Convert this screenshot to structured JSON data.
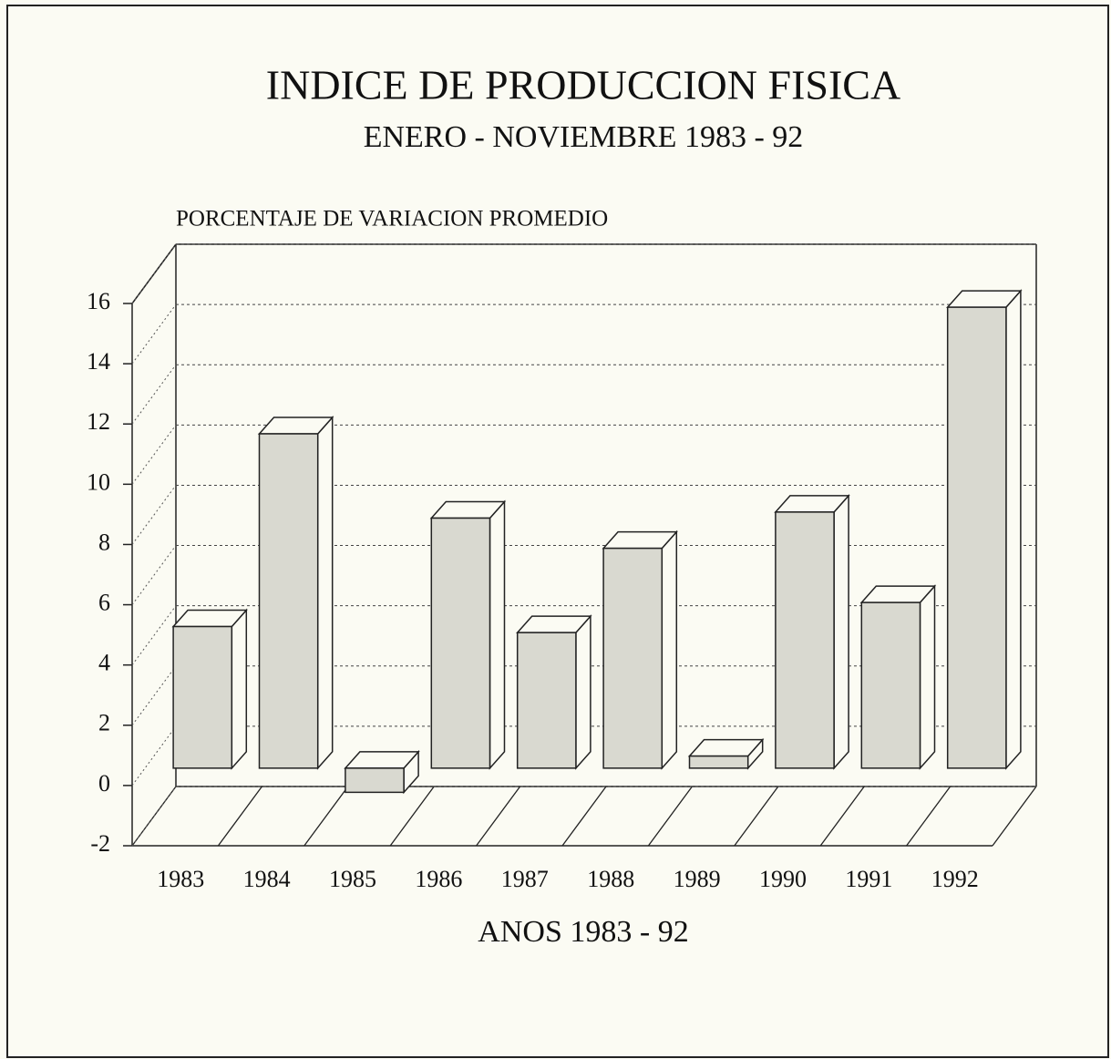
{
  "chart_data": {
    "type": "bar3d",
    "title": "INDICE DE PRODUCCION FISICA",
    "subtitle": "ENERO - NOVIEMBRE 1983 - 92",
    "y_axis_label": "PORCENTAJE DE VARIACION PROMEDIO",
    "x_axis_label": "ANOS 1983 - 92",
    "categories": [
      "1983",
      "1984",
      "1985",
      "1986",
      "1987",
      "1988",
      "1989",
      "1990",
      "1991",
      "1992"
    ],
    "values": [
      4.7,
      11.1,
      -0.8,
      8.3,
      4.5,
      7.3,
      0.4,
      8.5,
      5.5,
      15.3
    ],
    "color": "#d9d9d0",
    "ylim": [
      -2,
      16
    ],
    "yticks": [
      -2,
      0,
      2,
      4,
      6,
      8,
      10,
      12,
      14,
      16
    ],
    "grid": true
  }
}
